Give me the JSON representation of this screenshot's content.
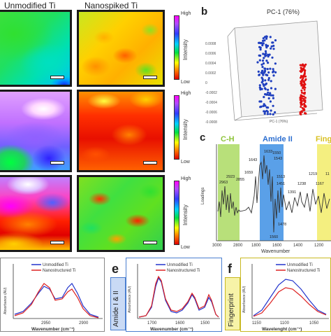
{
  "headers": {
    "col1": "Unmodified Ti",
    "col2": "Nanospiked Ti"
  },
  "colorbar": {
    "high": "High",
    "low": "Low",
    "title": "Intensity"
  },
  "panel_b": {
    "letter": "b",
    "title": "PC-1 (76%)",
    "axis_label": "PC-1 (76%)",
    "ticks": [
      "0.0008",
      "0.0006",
      "0.0004",
      "0.0002",
      "0",
      "-0.0002",
      "-0.0004",
      "-0.0006",
      "-0.0008"
    ],
    "colors": {
      "blue": "#1f3fbf",
      "red": "#e01010"
    }
  },
  "panel_c": {
    "letter": "c",
    "regions": [
      "C-H",
      "Amide II",
      "Finger"
    ],
    "ylabel": "Loadings",
    "xlabel": "Wavenumber",
    "xticks": [
      "3000",
      "2800",
      "1800",
      "1600",
      "1400",
      "1200"
    ],
    "peaks": [
      "2963",
      "2923",
      "2855",
      "1643",
      "1659",
      "1633",
      "1550",
      "1543",
      "1513",
      "1451",
      "1478",
      "1560",
      "1391",
      "1238",
      "1219",
      "1167",
      "11"
    ]
  },
  "bottom": {
    "legend": {
      "s1": "Unmodified Ti",
      "s2": "Nanostructured Ti"
    },
    "panel_d": {
      "ylabel": "Absorbance (AU)",
      "xlabel": "Wavenumber (cm⁻¹)",
      "xticks": [
        "2950",
        "2900"
      ]
    },
    "panel_e": {
      "letter": "e",
      "side": "Amide I & II",
      "ylabel": "Absorbance (AU)",
      "xlabel": "Wavenumber (cm⁻¹)",
      "xticks": [
        "1700",
        "1600",
        "1500"
      ]
    },
    "panel_f": {
      "letter": "f",
      "side": "Fingerprint",
      "ylabel": "Absorbance (AU)",
      "xlabel": "Wavelenght (cm⁻¹)",
      "xticks": [
        "1150",
        "1100",
        "1050"
      ]
    }
  }
}
